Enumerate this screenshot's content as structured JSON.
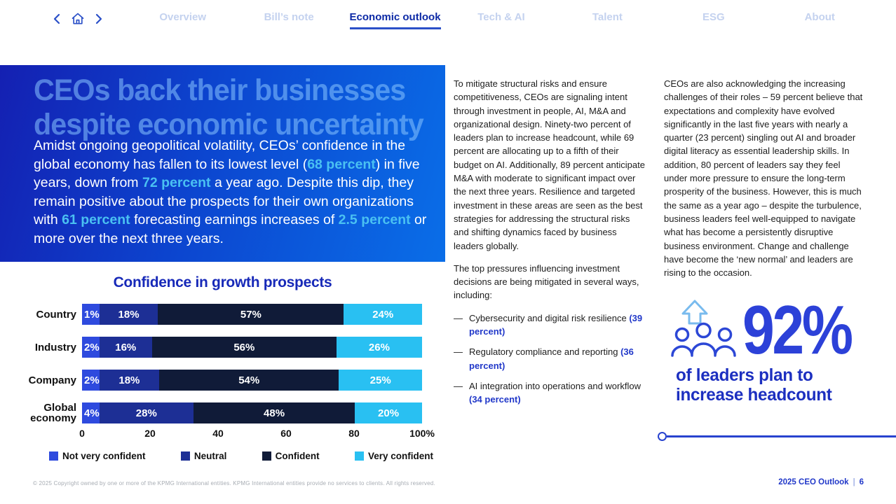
{
  "colors": {
    "accent_blue": "#2138c9",
    "active_nav_blue": "#0d2aa6",
    "inactive_nav_blue": "#c4d2ef",
    "hero_gradient_start": "#1420b2",
    "hero_gradient_end": "#0a6ee8",
    "cyan_highlight": "#4ac1f2",
    "stat_blue": "#2c41d8"
  },
  "nav": {
    "controls": {
      "back": "chevron-left-icon",
      "home": "home-icon",
      "forward": "chevron-right-icon"
    },
    "items": [
      {
        "label": "Overview",
        "active": false
      },
      {
        "label": "Bill’s note",
        "active": false
      },
      {
        "label": "Economic outlook",
        "active": true
      },
      {
        "label": "Tech & AI",
        "active": false
      },
      {
        "label": "Talent",
        "active": false
      },
      {
        "label": "ESG",
        "active": false
      },
      {
        "label": "About",
        "active": false
      }
    ]
  },
  "hero": {
    "title_line1": "CEOs back their businesses",
    "title_line2": "despite economic uncertainty",
    "paragraph": [
      {
        "text": "Amidst ongoing geopolitical volatility, CEOs’ confidence in the global economy has fallen to its lowest level (",
        "highlight": false
      },
      {
        "text": "68 percent",
        "highlight": true
      },
      {
        "text": ") in five years, down from ",
        "highlight": false
      },
      {
        "text": "72 percent",
        "highlight": true
      },
      {
        "text": " a year ago. Despite this dip, they remain positive about the prospects for their own organizations with ",
        "highlight": false
      },
      {
        "text": "61 percent",
        "highlight": true
      },
      {
        "text": " forecasting earnings increases of ",
        "highlight": false
      },
      {
        "text": "2.5 percent",
        "highlight": true
      },
      {
        "text": " or more over the next three years.",
        "highlight": false
      }
    ]
  },
  "chart_data": {
    "type": "bar",
    "orientation": "horizontal",
    "stacked": true,
    "title": "Confidence in growth prospects",
    "categories": [
      "Country",
      "Industry",
      "Company",
      "Global economy"
    ],
    "series": [
      {
        "name": "Not very confident",
        "color": "#2e4ade",
        "values": [
          1,
          2,
          2,
          4
        ]
      },
      {
        "name": "Neutral",
        "color": "#1d2f95",
        "values": [
          18,
          16,
          18,
          28
        ]
      },
      {
        "name": "Confident",
        "color": "#101b38",
        "values": [
          57,
          56,
          54,
          48
        ]
      },
      {
        "name": "Very confident",
        "color": "#29c0f2",
        "values": [
          24,
          26,
          25,
          20
        ]
      }
    ],
    "x_tick_labels": [
      "0",
      "20",
      "40",
      "60",
      "80",
      "100%"
    ],
    "xlim": [
      0,
      100
    ],
    "values_unit": "%",
    "legend_position": "bottom",
    "grid": false
  },
  "mid": {
    "p1": "To mitigate structural risks and ensure competitiveness, CEOs are signaling intent through investment in people, AI, M&A and organizational design. Ninety-two percent of leaders plan to increase headcount, while 69 percent are allocating up to a fifth of their budget on AI. Additionally, 89 percent anticipate M&A with moderate to significant impact over the next three years. Resilience and targeted investment in these areas are seen as the best strategies for addressing the structural risks and shifting dynamics faced by business leaders globally.",
    "p2": "The top pressures influencing investment decisions are being mitigated in several ways, including:",
    "bullets": [
      {
        "dash": "—",
        "text": "Cybersecurity and digital risk resilience ",
        "pct": "(39 percent)"
      },
      {
        "dash": "—",
        "text": "Regulatory compliance and reporting ",
        "pct": "(36 percent)"
      },
      {
        "dash": "—",
        "text": "AI integration into operations and workflow ",
        "pct": "(34 percent)"
      }
    ]
  },
  "right": {
    "p1": "CEOs are also acknowledging the increasing challenges of their roles – 59 percent believe that expectations and complexity have evolved significantly in the last five years with nearly a quarter (23 percent) singling out AI and broader digital literacy as essential leadership skills. In addition, 80 percent of leaders say they feel under more pressure to ensure the long-term prosperity of the business. However, this is much the same as a year ago – despite the turbulence, business leaders feel well-equipped to navigate what has become a persistently disruptive business environment. Change and challenge have become the ‘new normal’ and leaders are rising to the occasion.",
    "stat": {
      "value": "92%",
      "caption": "of leaders plan to increase headcount",
      "icon": "people-up-arrow-icon"
    }
  },
  "footer": {
    "copyright": "© 2025 Copyright owned by one or more of the KPMG International entities. KPMG International entities provide no services to clients. All rights reserved.",
    "brand": "2025 CEO Outlook",
    "separator": "|",
    "page": "6"
  }
}
